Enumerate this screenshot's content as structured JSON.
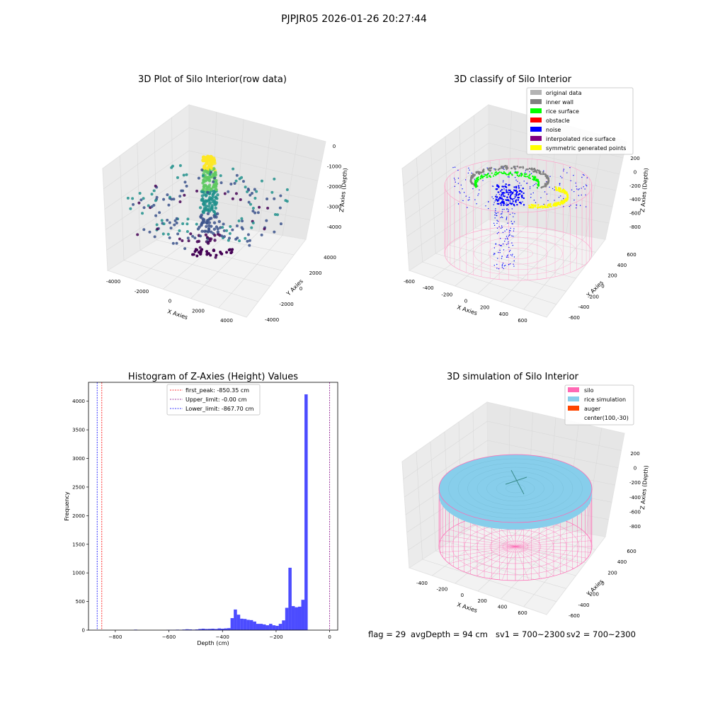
{
  "suptitle": "PJPJR05 2026-01-26 20:27:44",
  "footer": {
    "flag": "flag = 29",
    "avg_depth": "avgDepth = 94 cm",
    "sv1": "sv1 = 700~2300",
    "sv2": "sv2 = 700~2300"
  },
  "chart_data": [
    {
      "type": "scatter",
      "title": "3D Plot of Silo Interior(row data)",
      "xlabel": "X Axies",
      "ylabel": "Y Axies",
      "zlabel": "Z Axies (Depth)",
      "x_ticks": [
        "-4000",
        "-2000",
        "0",
        "2000",
        "4000"
      ],
      "y_ticks": [
        "-4000",
        "-2000",
        "0",
        "2000",
        "4000"
      ],
      "z_ticks": [
        "0",
        "-1000",
        "-2000",
        "-3000",
        "-4000"
      ],
      "colormap": [
        "#440154",
        "#3b528b",
        "#21918c",
        "#5ec962",
        "#fde725"
      ],
      "grid": true
    },
    {
      "type": "scatter",
      "title": "3D classify of Silo Interior",
      "xlabel": "X Axies",
      "ylabel": "Y Axies",
      "zlabel": "Z Axies (Depth)",
      "x_ticks": [
        "-600",
        "-400",
        "-200",
        "0",
        "200",
        "400",
        "600"
      ],
      "y_ticks": [
        "-600",
        "-400",
        "-200",
        "0",
        "200",
        "400",
        "600"
      ],
      "z_ticks": [
        "200",
        "0",
        "-200",
        "-400",
        "-600",
        "-800"
      ],
      "legend_position": "top-right",
      "legend": [
        {
          "label": "original data",
          "color": "#b3b3b3"
        },
        {
          "label": "inner wall",
          "color": "#808080"
        },
        {
          "label": "rice surface",
          "color": "#00ff00"
        },
        {
          "label": "obstacle",
          "color": "#ff0000"
        },
        {
          "label": "noise",
          "color": "#0000ff"
        },
        {
          "label": "interpolated rice surface",
          "color": "#800080"
        },
        {
          "label": "symmetric generated points",
          "color": "#ffff00"
        }
      ],
      "wireframe_color": "#ff9ec8",
      "grid": true
    },
    {
      "type": "bar",
      "title": "Histogram of Z-Axies (Height) Values",
      "xlabel": "Depth (cm)",
      "ylabel": "Frequency",
      "xlim": [
        -900,
        30
      ],
      "ylim": [
        0,
        4330
      ],
      "x_ticks": [
        -800,
        -600,
        -400,
        -200,
        0
      ],
      "y_ticks": [
        0,
        500,
        1000,
        1500,
        2000,
        2500,
        3000,
        3500,
        4000
      ],
      "bar_color": "#0000ff",
      "bins": [
        {
          "x0": -730,
          "x1": -718,
          "value": 8
        },
        {
          "x0": -610,
          "x1": -598,
          "value": 5
        },
        {
          "x0": -598,
          "x1": -586,
          "value": 5
        },
        {
          "x0": -586,
          "x1": -574,
          "value": 5
        },
        {
          "x0": -574,
          "x1": -562,
          "value": 8
        },
        {
          "x0": -562,
          "x1": -550,
          "value": 6
        },
        {
          "x0": -550,
          "x1": -538,
          "value": 10
        },
        {
          "x0": -538,
          "x1": -526,
          "value": 15
        },
        {
          "x0": -526,
          "x1": -514,
          "value": 12
        },
        {
          "x0": -514,
          "x1": -502,
          "value": 8
        },
        {
          "x0": -502,
          "x1": -490,
          "value": 12
        },
        {
          "x0": -490,
          "x1": -478,
          "value": 20
        },
        {
          "x0": -478,
          "x1": -466,
          "value": 25
        },
        {
          "x0": -466,
          "x1": -454,
          "value": 20
        },
        {
          "x0": -454,
          "x1": -442,
          "value": 22
        },
        {
          "x0": -442,
          "x1": -430,
          "value": 25
        },
        {
          "x0": -430,
          "x1": -418,
          "value": 20
        },
        {
          "x0": -418,
          "x1": -406,
          "value": 30
        },
        {
          "x0": -406,
          "x1": -394,
          "value": 25
        },
        {
          "x0": -394,
          "x1": -382,
          "value": 30
        },
        {
          "x0": -382,
          "x1": -370,
          "value": 35
        },
        {
          "x0": -370,
          "x1": -358,
          "value": 210
        },
        {
          "x0": -358,
          "x1": -346,
          "value": 360
        },
        {
          "x0": -346,
          "x1": -334,
          "value": 270
        },
        {
          "x0": -334,
          "x1": -322,
          "value": 200
        },
        {
          "x0": -322,
          "x1": -310,
          "value": 195
        },
        {
          "x0": -310,
          "x1": -298,
          "value": 180
        },
        {
          "x0": -298,
          "x1": -286,
          "value": 175
        },
        {
          "x0": -286,
          "x1": -274,
          "value": 150
        },
        {
          "x0": -274,
          "x1": -262,
          "value": 110
        },
        {
          "x0": -262,
          "x1": -250,
          "value": 110
        },
        {
          "x0": -250,
          "x1": -238,
          "value": 100
        },
        {
          "x0": -238,
          "x1": -226,
          "value": 85
        },
        {
          "x0": -226,
          "x1": -214,
          "value": 110
        },
        {
          "x0": -214,
          "x1": -202,
          "value": 85
        },
        {
          "x0": -202,
          "x1": -190,
          "value": 75
        },
        {
          "x0": -190,
          "x1": -178,
          "value": 110
        },
        {
          "x0": -178,
          "x1": -166,
          "value": 170
        },
        {
          "x0": -166,
          "x1": -154,
          "value": 390
        },
        {
          "x0": -154,
          "x1": -142,
          "value": 1090
        },
        {
          "x0": -142,
          "x1": -130,
          "value": 420
        },
        {
          "x0": -130,
          "x1": -118,
          "value": 400
        },
        {
          "x0": -118,
          "x1": -106,
          "value": 410
        },
        {
          "x0": -106,
          "x1": -94,
          "value": 530
        },
        {
          "x0": -94,
          "x1": -82,
          "value": 4120
        }
      ],
      "legend_position": "top-center",
      "vlines": [
        {
          "label": "first_peak: -850.35 cm",
          "x": -850.35,
          "color": "#ff0000"
        },
        {
          "label": "Upper_limit: -0.00 cm",
          "x": 0,
          "color": "#800080"
        },
        {
          "label": "Lower_limit: -867.70 cm",
          "x": -867.7,
          "color": "#0000ff"
        }
      ],
      "grid": false
    },
    {
      "type": "area",
      "title": "3D simulation of Silo Interior",
      "xlabel": "X Axies",
      "ylabel": "Y Axies",
      "zlabel": "Z Axies (Depth)",
      "x_ticks": [
        "-400",
        "-200",
        "0",
        "200",
        "400",
        "600"
      ],
      "y_ticks": [
        "-600",
        "-400",
        "-200",
        "0",
        "200",
        "400",
        "600"
      ],
      "z_ticks": [
        "200",
        "0",
        "-200",
        "-400",
        "-600",
        "-800"
      ],
      "legend_position": "top-right",
      "legend": [
        {
          "label": "silo",
          "color": "#ff69b4"
        },
        {
          "label": "rice simulation",
          "color": "#87ceeb"
        },
        {
          "label": "auger",
          "color": "#ff4500"
        },
        {
          "label": "center(100,-30)",
          "color": ""
        }
      ],
      "grid": true
    }
  ]
}
